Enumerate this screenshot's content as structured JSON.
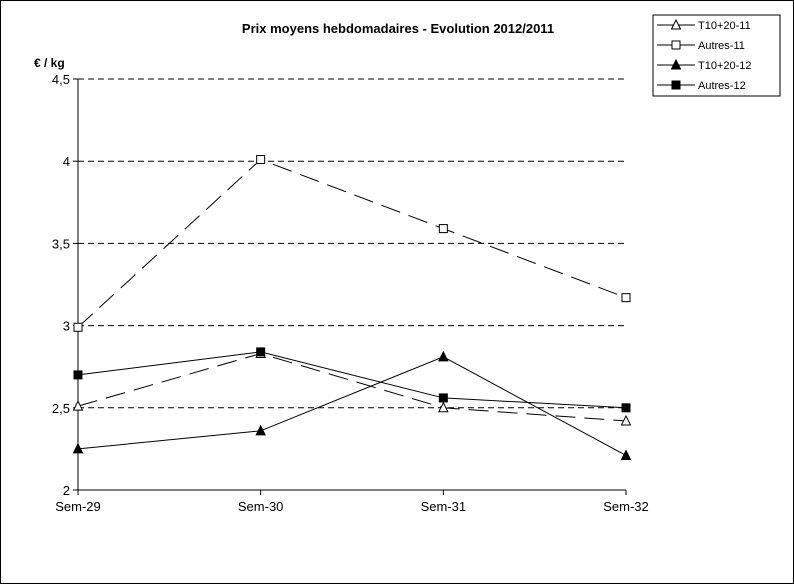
{
  "chart_data": {
    "type": "line",
    "title": "Prix moyens hebdomadaires - Evolution  2012/2011",
    "ylabel": "€ / kg",
    "xlabel": "",
    "categories": [
      "Sem-29",
      "Sem-30",
      "Sem-31",
      "Sem-32"
    ],
    "ylim": [
      2,
      4.5
    ],
    "yticks": [
      "2",
      "2,5",
      "3",
      "3,5",
      "4",
      "4,5"
    ],
    "ytick_values": [
      2,
      2.5,
      3,
      3.5,
      4,
      4.5
    ],
    "grid": "horizontal dashed",
    "legend_position": "top-right",
    "series": [
      {
        "name": "T10+20-11",
        "values": [
          2.51,
          2.83,
          2.5,
          2.42
        ],
        "marker": "triangle-open",
        "dash": "long-dash"
      },
      {
        "name": "Autres-11",
        "values": [
          2.99,
          4.01,
          3.59,
          3.17
        ],
        "marker": "square-open",
        "dash": "long-dash"
      },
      {
        "name": "T10+20-12",
        "values": [
          2.25,
          2.36,
          2.81,
          2.21
        ],
        "marker": "triangle-filled",
        "dash": "solid"
      },
      {
        "name": "Autres-12",
        "values": [
          2.7,
          2.84,
          2.56,
          2.5
        ],
        "marker": "square-filled",
        "dash": "solid"
      }
    ]
  }
}
